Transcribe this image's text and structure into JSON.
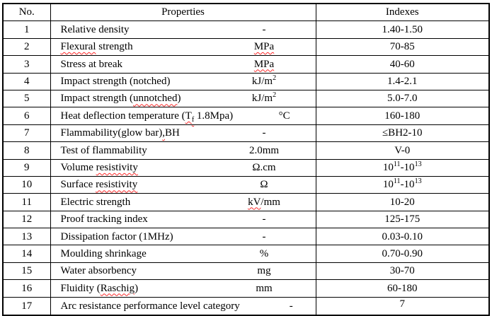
{
  "table": {
    "headers": {
      "no": "No.",
      "properties": "Properties",
      "indexes": "Indexes"
    },
    "colors": {
      "border": "#000000",
      "text": "#000000",
      "background": "#ffffff",
      "spellcheck_squiggle": "#ff2a2a"
    },
    "rows": [
      {
        "no": "1",
        "property": [
          {
            "t": "Relative density"
          }
        ],
        "unit": [
          {
            "t": "-"
          }
        ],
        "index": [
          {
            "t": "1.40-1.50"
          }
        ]
      },
      {
        "no": "2",
        "property": [
          {
            "t": "Flexural",
            "sq": true
          },
          {
            "t": " strength"
          }
        ],
        "unit": [
          {
            "t": "MPa",
            "sq": true
          }
        ],
        "index": [
          {
            "t": "70-85"
          }
        ]
      },
      {
        "no": "3",
        "property": [
          {
            "t": "Stress at break"
          }
        ],
        "unit": [
          {
            "t": "MPa",
            "sq": true
          }
        ],
        "index": [
          {
            "t": "40-60"
          }
        ]
      },
      {
        "no": "4",
        "property": [
          {
            "t": "Impact strength (notched)"
          }
        ],
        "unit": [
          {
            "t": "kJ/m"
          },
          {
            "t": "2",
            "sup": true
          }
        ],
        "index": [
          {
            "t": "1.4-2.1"
          }
        ]
      },
      {
        "no": "5",
        "property": [
          {
            "t": "Impact strength ("
          },
          {
            "t": "unnotched",
            "sq": true
          },
          {
            "t": ")"
          }
        ],
        "unit": [
          {
            "t": "kJ/m"
          },
          {
            "t": "2",
            "sup": true
          }
        ],
        "index": [
          {
            "t": "5.0-7.0"
          }
        ]
      },
      {
        "no": "6",
        "property": [
          {
            "t": "Heat deflection temperature ("
          },
          {
            "t": "T",
            "sq": true
          },
          {
            "t": "f",
            "sub": true,
            "sq": true
          },
          {
            "t": " 1.8Mpa)"
          }
        ],
        "unit": [
          {
            "t": "°C"
          }
        ],
        "index": [
          {
            "t": "160-180"
          }
        ]
      },
      {
        "no": "7",
        "property": [
          {
            "t": "Flammability(glow bar)"
          },
          {
            "t": ",",
            "sq": true
          },
          {
            "t": "BH"
          }
        ],
        "unit": [
          {
            "t": "-"
          }
        ],
        "index": [
          {
            "t": "≤BH2-10"
          }
        ]
      },
      {
        "no": "8",
        "property": [
          {
            "t": "Test of flammability"
          }
        ],
        "unit": [
          {
            "t": "2.0mm"
          }
        ],
        "index": [
          {
            "t": "V-0"
          }
        ]
      },
      {
        "no": "9",
        "property": [
          {
            "t": "Volume "
          },
          {
            "t": "resistivity",
            "sq": true
          }
        ],
        "unit": [
          {
            "t": "Ω.cm"
          }
        ],
        "index": [
          {
            "t": "10"
          },
          {
            "t": "11",
            "sup": true
          },
          {
            "t": "-10"
          },
          {
            "t": "13",
            "sup": true
          }
        ]
      },
      {
        "no": "10",
        "property": [
          {
            "t": "Surface "
          },
          {
            "t": "resistivity",
            "sq": true
          }
        ],
        "unit": [
          {
            "t": "Ω"
          }
        ],
        "index": [
          {
            "t": "10"
          },
          {
            "t": "11",
            "sup": true
          },
          {
            "t": "-10"
          },
          {
            "t": "13",
            "sup": true
          }
        ]
      },
      {
        "no": "11",
        "property": [
          {
            "t": "Electric strength"
          }
        ],
        "unit": [
          {
            "t": "kV",
            "sq": true
          },
          {
            "t": "/mm"
          }
        ],
        "index": [
          {
            "t": "10-20"
          }
        ]
      },
      {
        "no": "12",
        "property": [
          {
            "t": "Proof tracking index"
          }
        ],
        "unit": [
          {
            "t": "-"
          }
        ],
        "index": [
          {
            "t": "125-175"
          }
        ]
      },
      {
        "no": "13",
        "property": [
          {
            "t": "Dissipation factor (1MHz)"
          }
        ],
        "unit": [
          {
            "t": "-"
          }
        ],
        "index": [
          {
            "t": "0.03-0.10"
          }
        ]
      },
      {
        "no": "14",
        "property": [
          {
            "t": "Moulding shrinkage"
          }
        ],
        "unit": [
          {
            "t": "%"
          }
        ],
        "index": [
          {
            "t": "0.70-0.90"
          }
        ]
      },
      {
        "no": "15",
        "property": [
          {
            "t": "Water absorbency"
          }
        ],
        "unit": [
          {
            "t": "mg"
          }
        ],
        "index": [
          {
            "t": "30-70"
          }
        ]
      },
      {
        "no": "16",
        "property": [
          {
            "t": "Fluidity ("
          },
          {
            "t": "Raschig",
            "sq": true
          },
          {
            "t": ")"
          }
        ],
        "unit": [
          {
            "t": "mm"
          }
        ],
        "index": [
          {
            "t": "60-180"
          }
        ]
      },
      {
        "no": "17",
        "property": [
          {
            "t": "Arc resistance performance level category"
          }
        ],
        "unit": [
          {
            "t": "-"
          }
        ],
        "index": [
          {
            "t": "7"
          }
        ],
        "index_align": "top"
      }
    ]
  }
}
